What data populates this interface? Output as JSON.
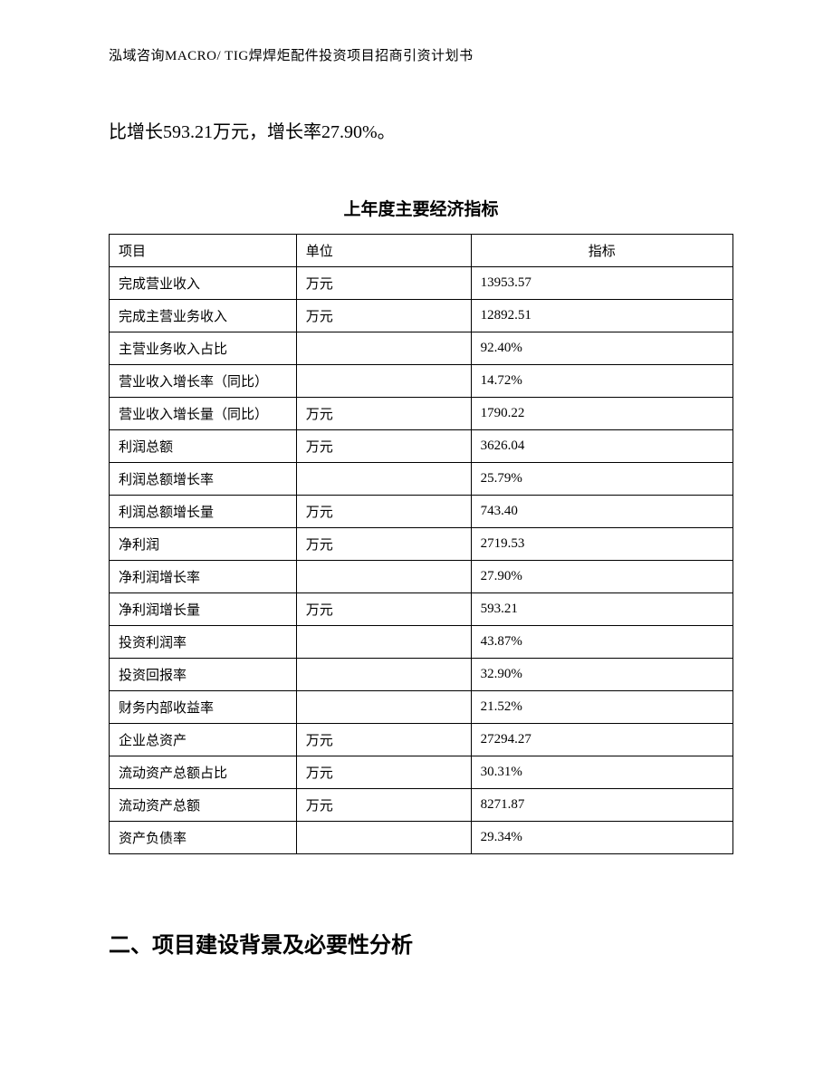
{
  "header": "泓域咨询MACRO/ TIG焊焊炬配件投资项目招商引资计划书",
  "intro_text": "比增长593.21万元，增长率27.90%。",
  "table_title": "上年度主要经济指标",
  "table": {
    "columns": [
      "项目",
      "单位",
      "指标"
    ],
    "rows": [
      [
        "完成营业收入",
        "万元",
        "13953.57"
      ],
      [
        "完成主营业务收入",
        "万元",
        "12892.51"
      ],
      [
        "主营业务收入占比",
        "",
        "92.40%"
      ],
      [
        "营业收入增长率（同比）",
        "",
        "14.72%"
      ],
      [
        "营业收入增长量（同比）",
        "万元",
        "1790.22"
      ],
      [
        "利润总额",
        "万元",
        "3626.04"
      ],
      [
        "利润总额增长率",
        "",
        "25.79%"
      ],
      [
        "利润总额增长量",
        "万元",
        "743.40"
      ],
      [
        "净利润",
        "万元",
        "2719.53"
      ],
      [
        "净利润增长率",
        "",
        "27.90%"
      ],
      [
        "净利润增长量",
        "万元",
        "593.21"
      ],
      [
        "投资利润率",
        "",
        "43.87%"
      ],
      [
        "投资回报率",
        "",
        "32.90%"
      ],
      [
        "财务内部收益率",
        "",
        "21.52%"
      ],
      [
        "企业总资产",
        "万元",
        "27294.27"
      ],
      [
        "流动资产总额占比",
        "万元",
        "30.31%"
      ],
      [
        "流动资产总额",
        "万元",
        "8271.87"
      ],
      [
        "资产负债率",
        "",
        "29.34%"
      ]
    ]
  },
  "section_heading": "二、项目建设背景及必要性分析"
}
